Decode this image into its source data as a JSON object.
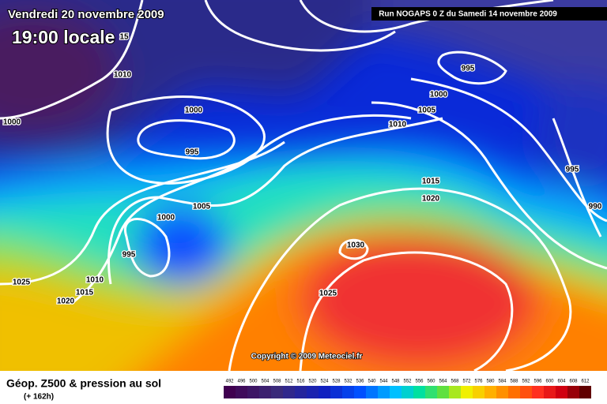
{
  "header": {
    "date": "Vendredi 20 novembre 2009",
    "time": "19:00 locale",
    "run": "Run NOGAPS 0 Z du Samedi 14 novembre 2009"
  },
  "isobars": {
    "labels": [
      "15",
      "1010",
      "1000",
      "1000",
      "995",
      "1005",
      "1000",
      "995",
      "1010",
      "1015",
      "1020",
      "1025",
      "1030",
      "1025",
      "1010",
      "1005",
      "1000",
      "995",
      "1015",
      "1020",
      "995",
      "990"
    ]
  },
  "copyright": "Copyright © 2009 Meteociel.fr",
  "footer": {
    "title": "Géop. Z500 & pression au sol",
    "lead": "(+ 162h)"
  },
  "scale": {
    "labels": [
      492,
      496,
      500,
      504,
      508,
      512,
      516,
      520,
      524,
      528,
      532,
      536,
      540,
      544,
      548,
      552,
      556,
      560,
      564,
      568,
      572,
      576,
      580,
      584,
      588,
      592,
      596,
      600,
      604,
      608,
      612
    ]
  }
}
